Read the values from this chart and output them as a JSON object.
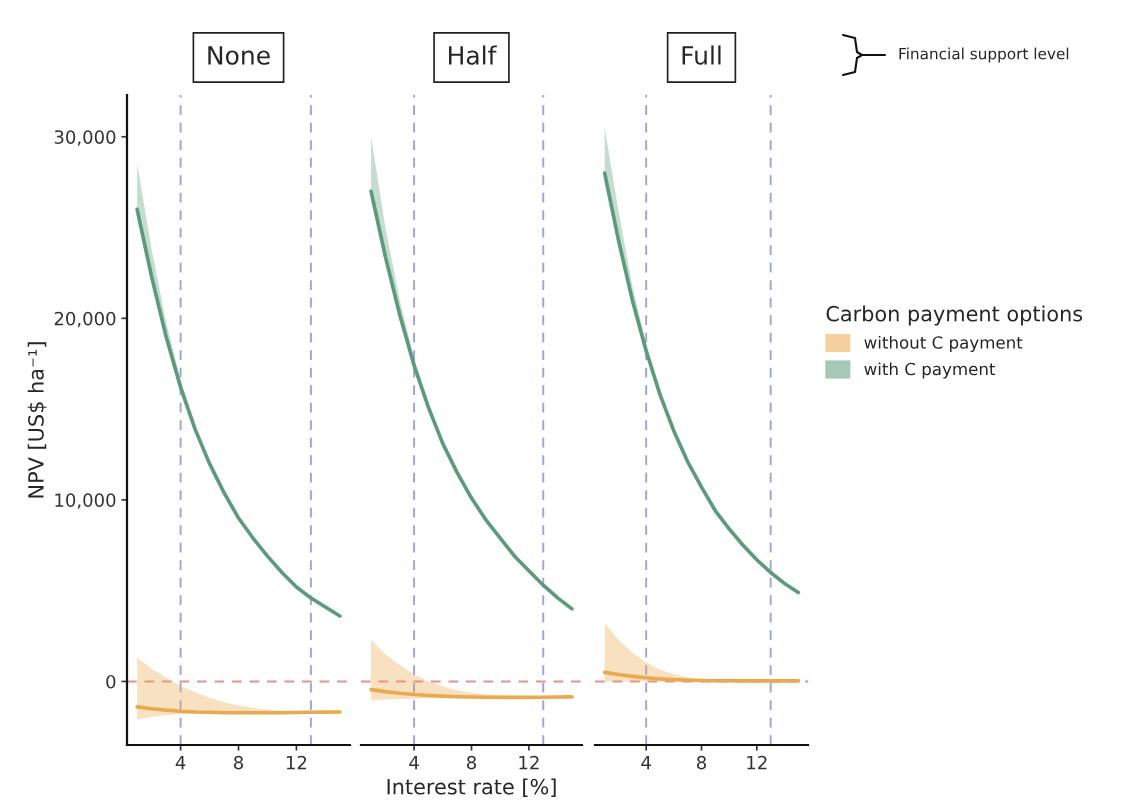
{
  "chart_data": [
    {
      "type": "line",
      "title": "None",
      "ylabel": "NPV [US$ ha⁻¹]",
      "xlim": [
        0.3,
        15.7
      ],
      "xticks": [
        4,
        8,
        12
      ],
      "ylim": [
        -3500,
        32300
      ],
      "yticks": [
        {
          "value": 0,
          "label": "0"
        },
        {
          "value": 10000,
          "label": "10,000"
        },
        {
          "value": 20000,
          "label": "20,000"
        },
        {
          "value": 30000,
          "label": "30,000"
        }
      ],
      "grid": false,
      "legend": false,
      "x": [
        1,
        2,
        3,
        4,
        5,
        6,
        7,
        8,
        9,
        10,
        11,
        12,
        13,
        14,
        15
      ],
      "ref_lines": [
        {
          "axis": "x",
          "value": 4,
          "color": "#9fa3e0",
          "line_style": "dashed"
        },
        {
          "axis": "x",
          "value": 13,
          "color": "#9fa3e0",
          "line_style": "dashed"
        },
        {
          "axis": "y",
          "value": 0,
          "color": "#e89090",
          "line_style": "dashed"
        }
      ],
      "series": [
        {
          "color": "#e9a94c",
          "values": [
            -1400,
            -1500,
            -1580,
            -1640,
            -1680,
            -1700,
            -1720,
            -1720,
            -1720,
            -1720,
            -1720,
            -1710,
            -1700,
            -1690,
            -1680
          ],
          "lower": [
            -2100,
            -1950,
            -1850,
            -1800,
            -1770,
            -1760,
            -1750,
            -1750,
            -1750,
            -1750,
            -1750,
            -1740,
            -1730,
            -1720,
            -1710
          ],
          "upper": [
            1300,
            700,
            200,
            -250,
            -600,
            -900,
            -1150,
            -1320,
            -1450,
            -1550,
            -1620,
            -1660,
            -1680,
            -1680,
            -1670
          ]
        },
        {
          "color": "#5c9a7c",
          "values": [
            26000,
            22300,
            19000,
            16200,
            13900,
            12000,
            10400,
            9000,
            7900,
            6900,
            6000,
            5200,
            4600,
            4100,
            3600
          ],
          "lower": [
            25500,
            21900,
            18700,
            16000,
            13750,
            11900,
            10330,
            8950,
            7860,
            6870,
            5980,
            5180,
            4580,
            4080,
            3580
          ],
          "upper": [
            28500,
            23800,
            19800,
            16600,
            14100,
            12100,
            10450,
            9050,
            7940,
            6930,
            6020,
            5220,
            4620,
            4120,
            3620
          ]
        }
      ]
    },
    {
      "type": "line",
      "title": "Half",
      "xlabel": "Interest rate [%]",
      "xlim": [
        0.3,
        15.7
      ],
      "xticks": [
        4,
        8,
        12
      ],
      "ylim": [
        -3500,
        32300
      ],
      "tick_labels": "x",
      "grid": false,
      "legend": false,
      "x": [
        1,
        2,
        3,
        4,
        5,
        6,
        7,
        8,
        9,
        10,
        11,
        12,
        13,
        14,
        15
      ],
      "ref_lines": [
        {
          "axis": "x",
          "value": 4,
          "color": "#9fa3e0",
          "line_style": "dashed"
        },
        {
          "axis": "x",
          "value": 13,
          "color": "#9fa3e0",
          "line_style": "dashed"
        },
        {
          "axis": "y",
          "value": 0,
          "color": "#e89090",
          "line_style": "dashed"
        }
      ],
      "series": [
        {
          "color": "#e9a94c",
          "values": [
            -450,
            -560,
            -650,
            -720,
            -770,
            -810,
            -840,
            -860,
            -870,
            -880,
            -880,
            -880,
            -870,
            -860,
            -850
          ],
          "lower": [
            -1050,
            -1000,
            -970,
            -950,
            -930,
            -920,
            -910,
            -910,
            -910,
            -910,
            -910,
            -905,
            -895,
            -885,
            -875
          ],
          "upper": [
            2300,
            1500,
            900,
            400,
            0,
            -280,
            -480,
            -620,
            -710,
            -770,
            -810,
            -830,
            -830,
            -820,
            -810
          ]
        },
        {
          "color": "#5c9a7c",
          "values": [
            27000,
            23400,
            20200,
            17400,
            15100,
            13100,
            11500,
            10100,
            8900,
            7900,
            6900,
            6100,
            5300,
            4600,
            4000
          ],
          "lower": [
            26500,
            23000,
            19900,
            17200,
            14950,
            13000,
            11430,
            10050,
            8860,
            7870,
            6880,
            6080,
            5280,
            4580,
            3980
          ],
          "upper": [
            30000,
            25000,
            21000,
            17800,
            15300,
            13200,
            11550,
            10150,
            8940,
            7930,
            6920,
            6120,
            5320,
            4620,
            4020
          ]
        }
      ]
    },
    {
      "type": "line",
      "title": "Full",
      "xlim": [
        0.3,
        15.7
      ],
      "xticks": [
        4,
        8,
        12
      ],
      "ylim": [
        -3500,
        32300
      ],
      "tick_labels": "x",
      "grid": false,
      "legend": "right",
      "legend_title": "Carbon payment options",
      "annotations": [
        "Financial support level"
      ],
      "x": [
        1,
        2,
        3,
        4,
        5,
        6,
        7,
        8,
        9,
        10,
        11,
        12,
        13,
        14,
        15
      ],
      "ref_lines": [
        {
          "axis": "x",
          "value": 4,
          "color": "#9fa3e0",
          "line_style": "dashed"
        },
        {
          "axis": "x",
          "value": 13,
          "color": "#9fa3e0",
          "line_style": "dashed"
        },
        {
          "axis": "y",
          "value": 0,
          "color": "#e89090",
          "line_style": "dashed"
        }
      ],
      "series": [
        {
          "name": "without C payment",
          "color": "#e9a94c",
          "values": [
            500,
            380,
            280,
            200,
            140,
            100,
            70,
            50,
            40,
            35,
            30,
            30,
            30,
            30,
            30
          ],
          "lower": [
            0,
            0,
            0,
            0,
            0,
            0,
            0,
            0,
            0,
            0,
            0,
            0,
            0,
            0,
            0
          ],
          "upper": [
            3200,
            2300,
            1600,
            1050,
            650,
            400,
            230,
            140,
            90,
            60,
            40,
            40,
            40,
            40,
            40
          ]
        },
        {
          "name": "with C payment",
          "color": "#5c9a7c",
          "values": [
            28000,
            24300,
            21000,
            18200,
            15800,
            13800,
            12100,
            10700,
            9400,
            8400,
            7500,
            6700,
            6000,
            5400,
            4900
          ],
          "lower": [
            27500,
            23900,
            20700,
            18000,
            15650,
            13700,
            12030,
            10650,
            9360,
            8370,
            7480,
            6680,
            5980,
            5380,
            4880
          ],
          "upper": [
            30500,
            25900,
            21800,
            18600,
            16000,
            13900,
            12150,
            10750,
            9440,
            8430,
            7520,
            6720,
            6020,
            5420,
            4920
          ]
        }
      ]
    }
  ]
}
